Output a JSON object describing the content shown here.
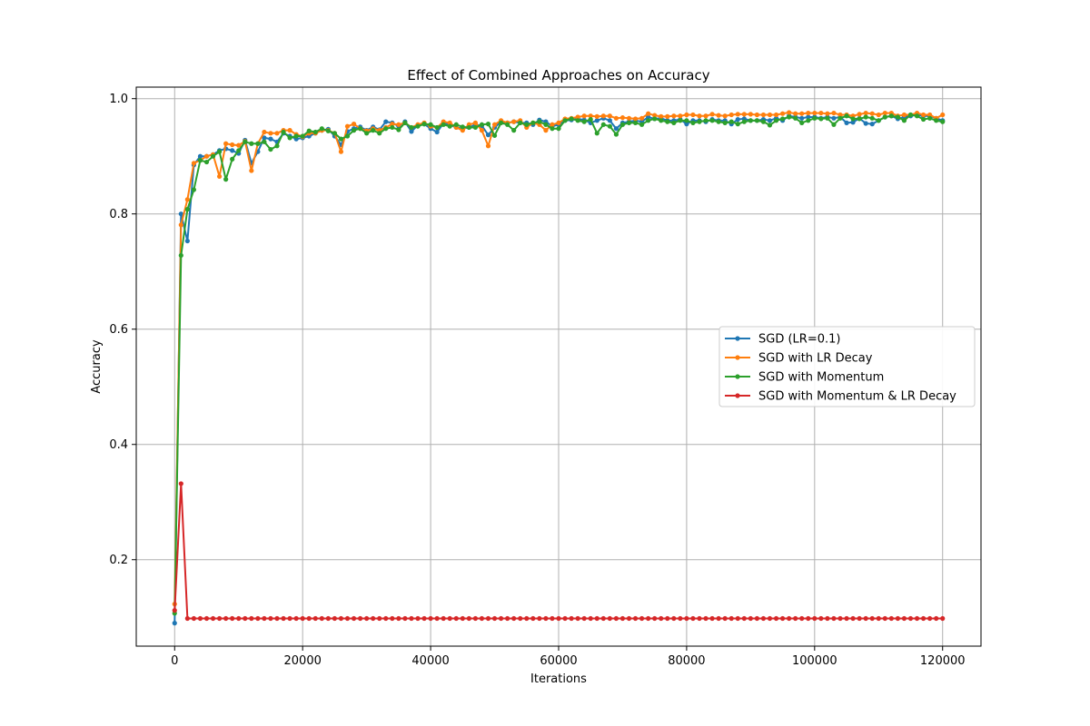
{
  "chart_data": {
    "type": "line",
    "title": "Effect of Combined Approaches on Accuracy",
    "xlabel": "Iterations",
    "ylabel": "Accuracy",
    "xlim": [
      -6000,
      126000
    ],
    "ylim": [
      0.05,
      1.02
    ],
    "xticks": [
      0,
      20000,
      40000,
      60000,
      80000,
      100000,
      120000
    ],
    "yticks": [
      0.2,
      0.4,
      0.6,
      0.8,
      1.0
    ],
    "grid": true,
    "legend_position": "center-right",
    "x": [
      0,
      1000,
      2000,
      3000,
      4000,
      5000,
      6000,
      7000,
      8000,
      9000,
      10000,
      11000,
      12000,
      13000,
      14000,
      15000,
      16000,
      17000,
      18000,
      19000,
      20000,
      21000,
      22000,
      23000,
      24000,
      25000,
      26000,
      27000,
      28000,
      29000,
      30000,
      31000,
      32000,
      33000,
      34000,
      35000,
      36000,
      37000,
      38000,
      39000,
      40000,
      41000,
      42000,
      43000,
      44000,
      45000,
      46000,
      47000,
      48000,
      49000,
      50000,
      51000,
      52000,
      53000,
      54000,
      55000,
      56000,
      57000,
      58000,
      59000,
      60000,
      61000,
      62000,
      63000,
      64000,
      65000,
      66000,
      67000,
      68000,
      69000,
      70000,
      71000,
      72000,
      73000,
      74000,
      75000,
      76000,
      77000,
      78000,
      79000,
      80000,
      81000,
      82000,
      83000,
      84000,
      85000,
      86000,
      87000,
      88000,
      89000,
      90000,
      91000,
      92000,
      93000,
      94000,
      95000,
      96000,
      97000,
      98000,
      99000,
      100000,
      101000,
      102000,
      103000,
      104000,
      105000,
      106000,
      107000,
      108000,
      109000,
      110000,
      111000,
      112000,
      113000,
      114000,
      115000,
      116000,
      117000,
      118000,
      119000,
      120000
    ],
    "series": [
      {
        "name": "SGD (LR=0.1)",
        "color": "#1f77b4",
        "values": [
          0.09,
          0.8,
          0.753,
          0.885,
          0.9,
          0.9,
          0.903,
          0.91,
          0.913,
          0.91,
          0.905,
          0.928,
          0.888,
          0.908,
          0.932,
          0.93,
          0.925,
          0.94,
          0.935,
          0.93,
          0.932,
          0.935,
          0.94,
          0.945,
          0.947,
          0.935,
          0.92,
          0.943,
          0.948,
          0.951,
          0.945,
          0.951,
          0.946,
          0.96,
          0.958,
          0.952,
          0.96,
          0.943,
          0.954,
          0.956,
          0.948,
          0.942,
          0.957,
          0.955,
          0.95,
          0.948,
          0.95,
          0.955,
          0.953,
          0.937,
          0.95,
          0.96,
          0.958,
          0.96,
          0.958,
          0.958,
          0.955,
          0.963,
          0.96,
          0.952,
          0.955,
          0.962,
          0.963,
          0.965,
          0.963,
          0.958,
          0.962,
          0.966,
          0.962,
          0.948,
          0.958,
          0.96,
          0.962,
          0.96,
          0.968,
          0.965,
          0.966,
          0.962,
          0.962,
          0.964,
          0.956,
          0.962,
          0.962,
          0.96,
          0.964,
          0.962,
          0.962,
          0.956,
          0.964,
          0.965,
          0.962,
          0.962,
          0.964,
          0.962,
          0.966,
          0.962,
          0.97,
          0.968,
          0.966,
          0.968,
          0.968,
          0.966,
          0.968,
          0.966,
          0.968,
          0.958,
          0.959,
          0.966,
          0.957,
          0.956,
          0.962,
          0.968,
          0.97,
          0.965,
          0.968,
          0.97,
          0.972,
          0.97,
          0.97,
          0.966,
          0.962
        ]
      },
      {
        "name": "SGD with LR Decay",
        "color": "#ff7f0e",
        "values": [
          0.123,
          0.781,
          0.825,
          0.888,
          0.893,
          0.9,
          0.903,
          0.865,
          0.922,
          0.92,
          0.919,
          0.926,
          0.875,
          0.922,
          0.942,
          0.94,
          0.94,
          0.945,
          0.945,
          0.938,
          0.934,
          0.94,
          0.94,
          0.945,
          0.945,
          0.94,
          0.908,
          0.952,
          0.956,
          0.948,
          0.944,
          0.948,
          0.945,
          0.95,
          0.956,
          0.955,
          0.958,
          0.95,
          0.955,
          0.958,
          0.952,
          0.95,
          0.96,
          0.958,
          0.95,
          0.945,
          0.955,
          0.958,
          0.945,
          0.918,
          0.955,
          0.962,
          0.958,
          0.96,
          0.962,
          0.95,
          0.958,
          0.955,
          0.945,
          0.955,
          0.958,
          0.965,
          0.966,
          0.968,
          0.97,
          0.97,
          0.969,
          0.97,
          0.97,
          0.966,
          0.967,
          0.966,
          0.965,
          0.966,
          0.974,
          0.971,
          0.969,
          0.969,
          0.97,
          0.97,
          0.972,
          0.972,
          0.97,
          0.97,
          0.973,
          0.971,
          0.97,
          0.972,
          0.973,
          0.973,
          0.973,
          0.972,
          0.972,
          0.972,
          0.972,
          0.974,
          0.976,
          0.974,
          0.974,
          0.975,
          0.975,
          0.975,
          0.974,
          0.975,
          0.972,
          0.972,
          0.97,
          0.973,
          0.975,
          0.974,
          0.972,
          0.975,
          0.975,
          0.97,
          0.972,
          0.972,
          0.975,
          0.972,
          0.972,
          0.966,
          0.972
        ]
      },
      {
        "name": "SGD with Momentum",
        "color": "#2ca02c",
        "values": [
          0.107,
          0.728,
          0.808,
          0.842,
          0.893,
          0.89,
          0.9,
          0.908,
          0.86,
          0.895,
          0.91,
          0.925,
          0.922,
          0.922,
          0.925,
          0.912,
          0.918,
          0.942,
          0.932,
          0.935,
          0.935,
          0.944,
          0.942,
          0.948,
          0.944,
          0.94,
          0.93,
          0.935,
          0.945,
          0.948,
          0.94,
          0.945,
          0.94,
          0.948,
          0.95,
          0.946,
          0.958,
          0.95,
          0.952,
          0.956,
          0.955,
          0.95,
          0.955,
          0.952,
          0.955,
          0.951,
          0.95,
          0.95,
          0.955,
          0.956,
          0.936,
          0.958,
          0.955,
          0.945,
          0.958,
          0.955,
          0.958,
          0.96,
          0.955,
          0.948,
          0.948,
          0.962,
          0.965,
          0.962,
          0.96,
          0.964,
          0.94,
          0.955,
          0.952,
          0.938,
          0.955,
          0.958,
          0.958,
          0.955,
          0.962,
          0.965,
          0.962,
          0.96,
          0.958,
          0.962,
          0.962,
          0.958,
          0.96,
          0.962,
          0.962,
          0.96,
          0.958,
          0.96,
          0.956,
          0.96,
          0.962,
          0.962,
          0.96,
          0.954,
          0.962,
          0.965,
          0.968,
          0.966,
          0.958,
          0.962,
          0.966,
          0.965,
          0.966,
          0.955,
          0.966,
          0.97,
          0.965,
          0.965,
          0.968,
          0.966,
          0.962,
          0.968,
          0.97,
          0.968,
          0.962,
          0.972,
          0.97,
          0.964,
          0.966,
          0.962,
          0.96
        ]
      },
      {
        "name": "SGD with Momentum & LR Decay",
        "color": "#d62728",
        "values": [
          0.112,
          0.332,
          0.098,
          0.098,
          0.098,
          0.098,
          0.098,
          0.098,
          0.098,
          0.098,
          0.098,
          0.098,
          0.098,
          0.098,
          0.098,
          0.098,
          0.098,
          0.098,
          0.098,
          0.098,
          0.098,
          0.098,
          0.098,
          0.098,
          0.098,
          0.098,
          0.098,
          0.098,
          0.098,
          0.098,
          0.098,
          0.098,
          0.098,
          0.098,
          0.098,
          0.098,
          0.098,
          0.098,
          0.098,
          0.098,
          0.098,
          0.098,
          0.098,
          0.098,
          0.098,
          0.098,
          0.098,
          0.098,
          0.098,
          0.098,
          0.098,
          0.098,
          0.098,
          0.098,
          0.098,
          0.098,
          0.098,
          0.098,
          0.098,
          0.098,
          0.098,
          0.098,
          0.098,
          0.098,
          0.098,
          0.098,
          0.098,
          0.098,
          0.098,
          0.098,
          0.098,
          0.098,
          0.098,
          0.098,
          0.098,
          0.098,
          0.098,
          0.098,
          0.098,
          0.098,
          0.098,
          0.098,
          0.098,
          0.098,
          0.098,
          0.098,
          0.098,
          0.098,
          0.098,
          0.098,
          0.098,
          0.098,
          0.098,
          0.098,
          0.098,
          0.098,
          0.098,
          0.098,
          0.098,
          0.098,
          0.098,
          0.098,
          0.098,
          0.098,
          0.098,
          0.098,
          0.098,
          0.098,
          0.098,
          0.098,
          0.098,
          0.098,
          0.098,
          0.098,
          0.098,
          0.098,
          0.098,
          0.098,
          0.098,
          0.098,
          0.098
        ]
      }
    ]
  }
}
